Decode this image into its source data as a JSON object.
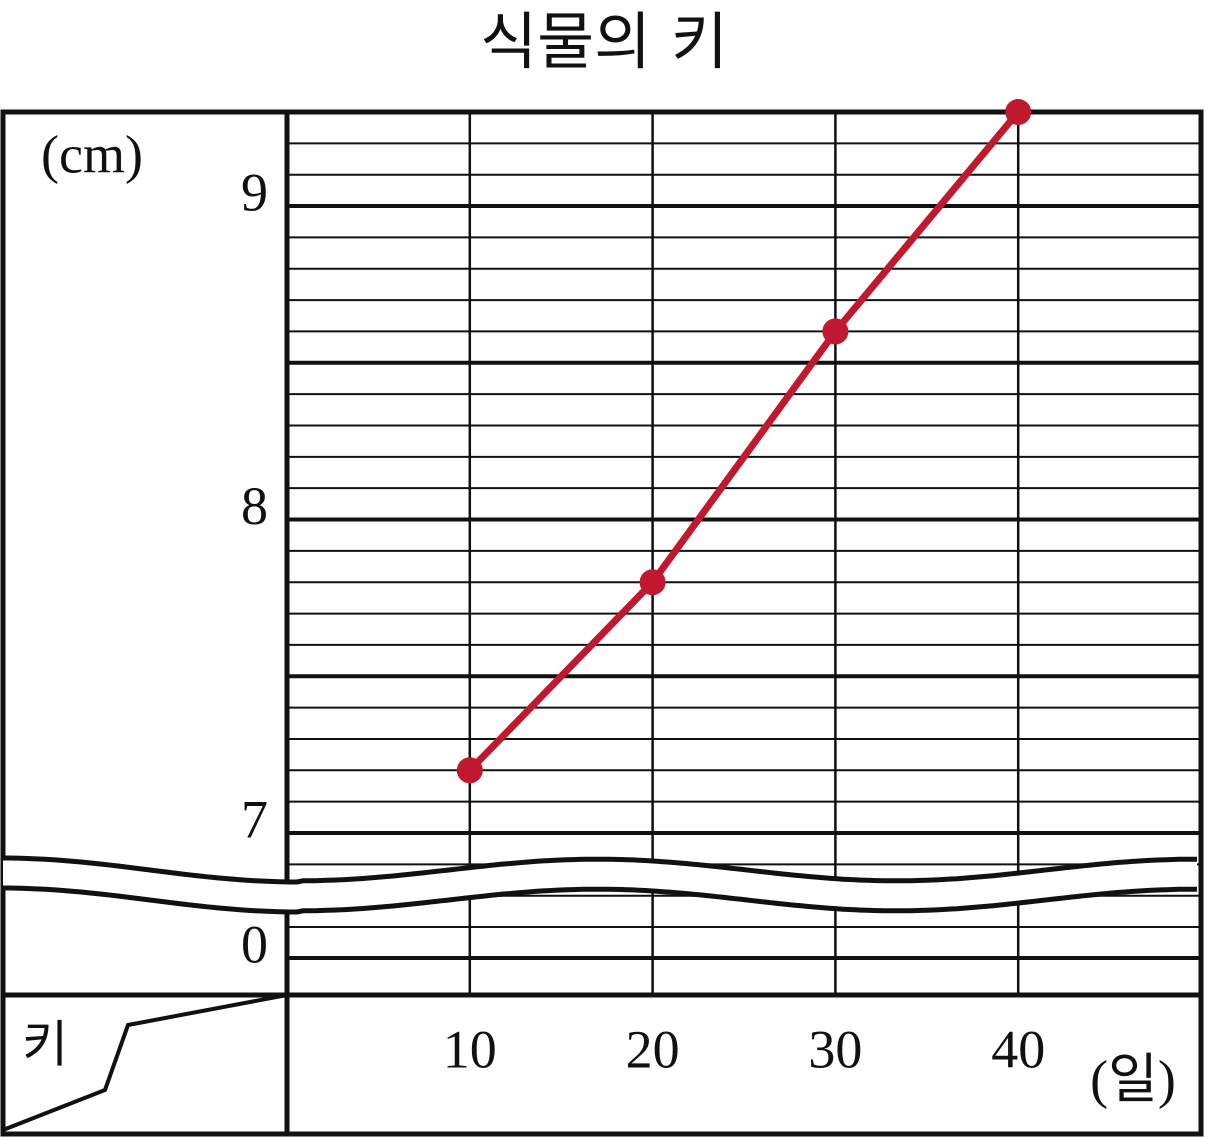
{
  "chart_data": {
    "type": "line",
    "title": "식물의 키",
    "y_label": "(cm)",
    "x_label": "(일)",
    "corner_label": "키",
    "x": [
      10,
      20,
      30,
      40
    ],
    "xlim": [
      0,
      50
    ],
    "xticks": [
      10,
      20,
      30,
      40
    ],
    "ylim": [
      0,
      9.3
    ],
    "yticks": [
      0,
      7,
      8,
      9
    ],
    "axis_break": true,
    "grid": true,
    "series": [
      {
        "color": "#c0182e",
        "values": [
          7.2,
          7.8,
          8.6,
          9.3
        ]
      }
    ]
  }
}
